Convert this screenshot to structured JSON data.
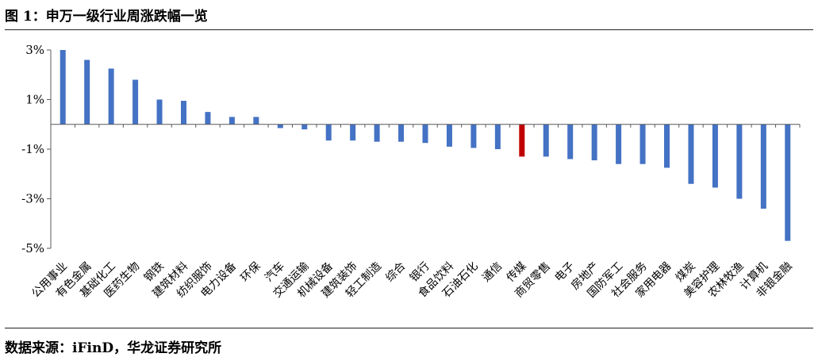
{
  "figure": {
    "title": "图 1：申万一级行业周涨跌幅一览",
    "source": "数据来源：iFinD，华龙证券研究所"
  },
  "chart_data": {
    "type": "bar",
    "title": "",
    "xlabel": "",
    "ylabel": "",
    "ylim": [
      -5,
      3
    ],
    "yticks": [
      3,
      1,
      -1,
      -3,
      -5
    ],
    "ytick_labels": [
      "3%",
      "1%",
      "-1%",
      "-3%",
      "-5%"
    ],
    "unit": "%",
    "grid": false,
    "legend": "none",
    "colors": {
      "default": "#4472C4",
      "highlight": "#C00000",
      "axis": "#595959"
    },
    "highlight": "传媒",
    "categories": [
      "公用事业",
      "有色金属",
      "基础化工",
      "医药生物",
      "钢铁",
      "建筑材料",
      "纺织服饰",
      "电力设备",
      "环保",
      "汽车",
      "交通运输",
      "机械设备",
      "建筑装饰",
      "轻工制造",
      "综合",
      "银行",
      "食品饮料",
      "石油石化",
      "通信",
      "传媒",
      "商贸零售",
      "电子",
      "房地产",
      "国防军工",
      "社会服务",
      "家用电器",
      "煤炭",
      "美容护理",
      "农林牧渔",
      "计算机",
      "非银金融"
    ],
    "values": [
      3.0,
      2.6,
      2.25,
      1.8,
      1.0,
      0.95,
      0.5,
      0.3,
      0.3,
      -0.15,
      -0.2,
      -0.65,
      -0.65,
      -0.7,
      -0.7,
      -0.75,
      -0.9,
      -0.95,
      -1.0,
      -1.3,
      -1.3,
      -1.4,
      -1.45,
      -1.6,
      -1.6,
      -1.75,
      -2.4,
      -2.55,
      -3.0,
      -3.4,
      -4.7
    ]
  }
}
